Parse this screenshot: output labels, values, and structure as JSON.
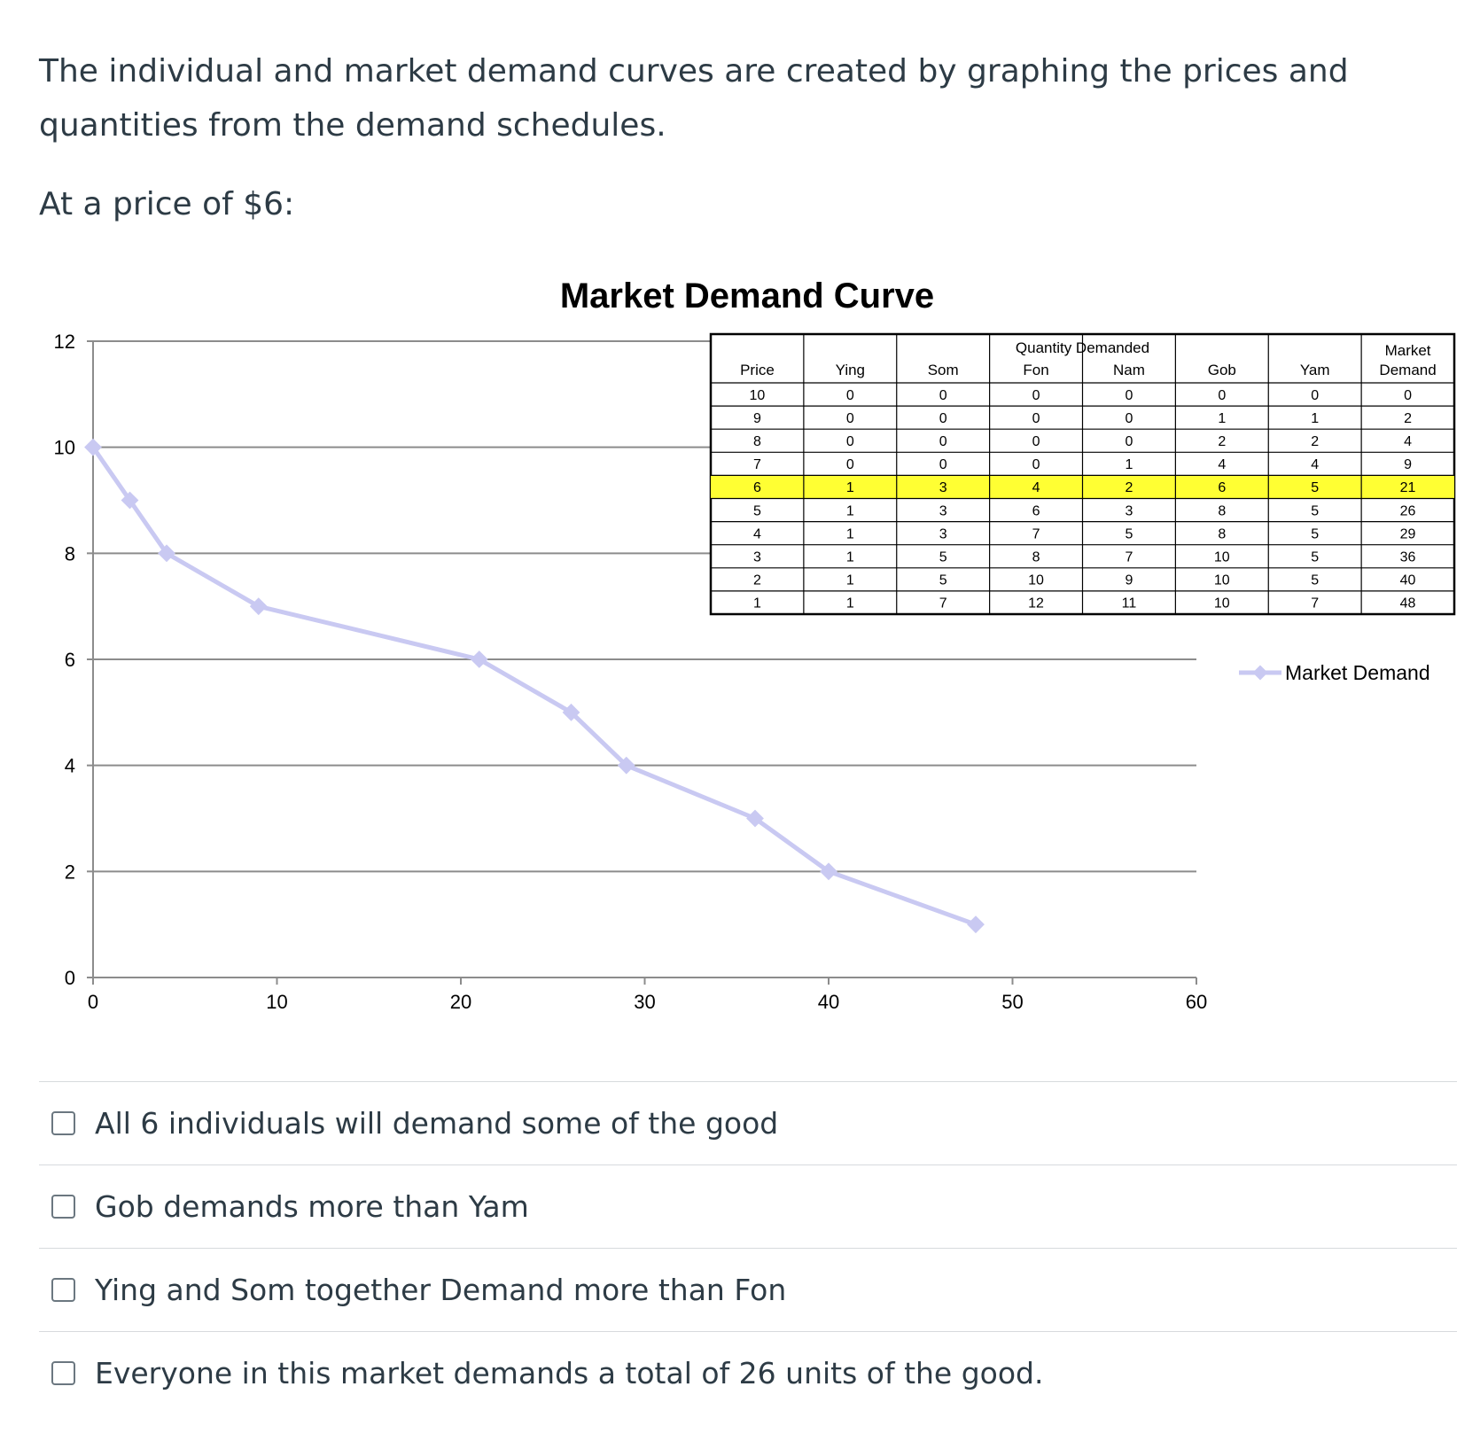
{
  "question": {
    "intro": "The individual and market demand curves are created by graphing the prices and quantities from the demand schedules.",
    "prompt": "At a price of $6:"
  },
  "chart_data": {
    "type": "line",
    "title": "Market Demand Curve",
    "xlabel": "",
    "ylabel": "",
    "xlim": [
      0,
      60
    ],
    "ylim": [
      0,
      12
    ],
    "xticks": [
      0,
      10,
      20,
      30,
      40,
      50,
      60
    ],
    "yticks": [
      0,
      2,
      4,
      6,
      8,
      10,
      12
    ],
    "grid": "horizontal",
    "legend_position": "right",
    "series": [
      {
        "name": "Market Demand",
        "color": "#c9c9f2",
        "x": [
          0,
          2,
          4,
          9,
          21,
          26,
          29,
          36,
          40,
          48
        ],
        "y": [
          10,
          9,
          8,
          7,
          6,
          5,
          4,
          3,
          2,
          1
        ]
      }
    ],
    "table": {
      "group_header": "Quantity Demanded",
      "market_header_lines": [
        "Market",
        "Demand"
      ],
      "columns": [
        "Price",
        "Ying",
        "Som",
        "Fon",
        "Nam",
        "Gob",
        "Yam"
      ],
      "highlight_color": "#ffff33",
      "highlight_row": 4,
      "rows": [
        [
          "10",
          "0",
          "0",
          "0",
          "0",
          "0",
          "0",
          "0"
        ],
        [
          "9",
          "0",
          "0",
          "0",
          "0",
          "1",
          "1",
          "2"
        ],
        [
          "8",
          "0",
          "0",
          "0",
          "0",
          "2",
          "2",
          "4"
        ],
        [
          "7",
          "0",
          "0",
          "0",
          "1",
          "4",
          "4",
          "9"
        ],
        [
          "6",
          "1",
          "3",
          "4",
          "2",
          "6",
          "5",
          "21"
        ],
        [
          "5",
          "1",
          "3",
          "6",
          "3",
          "8",
          "5",
          "26"
        ],
        [
          "4",
          "1",
          "3",
          "7",
          "5",
          "8",
          "5",
          "29"
        ],
        [
          "3",
          "1",
          "5",
          "8",
          "7",
          "10",
          "5",
          "36"
        ],
        [
          "2",
          "1",
          "5",
          "10",
          "9",
          "10",
          "5",
          "40"
        ],
        [
          "1",
          "1",
          "7",
          "12",
          "11",
          "10",
          "7",
          "48"
        ]
      ]
    }
  },
  "answers": [
    {
      "label": "All 6 individuals will demand some of the good"
    },
    {
      "label": "Gob demands more than Yam"
    },
    {
      "label": "Ying and Som together Demand more than Fon"
    },
    {
      "label": "Everyone in this market demands a total of 26 units of the good."
    }
  ]
}
